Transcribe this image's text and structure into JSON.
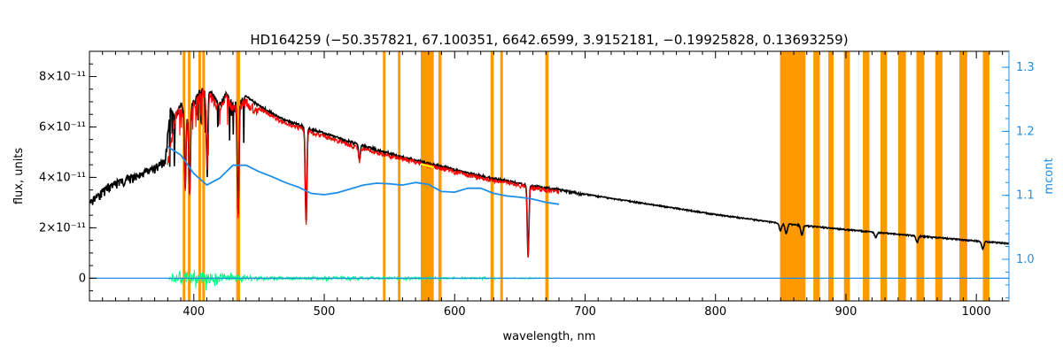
{
  "chart_data": {
    "type": "line",
    "title": "HD164259   (−50.357821, 67.100351, 6642.6599, 3.9152181, −0.19925828, 0.13693259)",
    "xlabel": "wavelength, nm",
    "ylabel": "flux, units",
    "y2label": "mcont",
    "xlim": [
      320,
      1025
    ],
    "ylim": [
      -9e-12,
      9e-11
    ],
    "y2lim": [
      0.935,
      1.325
    ],
    "grid": false,
    "x_ticks": [
      {
        "value": 400,
        "label": "400"
      },
      {
        "value": 500,
        "label": "500"
      },
      {
        "value": 600,
        "label": "600"
      },
      {
        "value": 700,
        "label": "700"
      },
      {
        "value": 800,
        "label": "800"
      },
      {
        "value": 900,
        "label": "900"
      },
      {
        "value": 1000,
        "label": "1000"
      }
    ],
    "y_ticks": [
      {
        "value": 0,
        "label": "0"
      },
      {
        "value": 2e-11,
        "label": "2×10⁻¹¹"
      },
      {
        "value": 4e-11,
        "label": "4×10⁻¹¹"
      },
      {
        "value": 6e-11,
        "label": "6×10⁻¹¹"
      },
      {
        "value": 8e-11,
        "label": "8×10⁻¹¹"
      }
    ],
    "y2_ticks": [
      {
        "value": 1.0,
        "label": "1.0"
      },
      {
        "value": 1.1,
        "label": "1.1"
      },
      {
        "value": 1.2,
        "label": "1.2"
      },
      {
        "value": 1.3,
        "label": "1.3"
      }
    ],
    "colors": {
      "observed": "#000000",
      "model": "#ff0000",
      "mask": "#ff9900",
      "continuum": "#1e8ee8",
      "residual": "#00ff7f",
      "highlight": "#ffff00"
    },
    "mask_regions": [
      [
        391.5,
        393.5
      ],
      [
        395.5,
        397.5
      ],
      [
        403.5,
        405.5
      ],
      [
        406.5,
        408.5
      ],
      [
        432.5,
        435.5
      ],
      [
        545.0,
        547.0
      ],
      [
        556.5,
        558.5
      ],
      [
        574.0,
        584.0
      ],
      [
        587.5,
        590.0
      ],
      [
        627.5,
        630.0
      ],
      [
        635.0,
        637.0
      ],
      [
        669.5,
        672.0
      ],
      [
        849.5,
        869.0
      ],
      [
        875.0,
        880.0
      ],
      [
        886.5,
        890.5
      ],
      [
        898.5,
        903.0
      ],
      [
        913.0,
        918.0
      ],
      [
        926.5,
        931.5
      ],
      [
        940.0,
        946.0
      ],
      [
        954.0,
        960.0
      ],
      [
        968.5,
        974.0
      ],
      [
        987.0,
        993.0
      ],
      [
        1005.0,
        1010.0
      ]
    ],
    "series": [
      {
        "role": "observed",
        "x": [
          320,
          330,
          340,
          350,
          360,
          370,
          378,
          382,
          386,
          390,
          395,
          400,
          405,
          410,
          415,
          420,
          425,
          430,
          440,
          450,
          460,
          470,
          480,
          490,
          500,
          520,
          540,
          560,
          580,
          600,
          620,
          640,
          660,
          680,
          700,
          750,
          800,
          850,
          900,
          950,
          1000,
          1025
        ],
        "y": [
          3.1e-11,
          3.6e-11,
          3.9e-11,
          4.1e-11,
          4.3e-11,
          4.5e-11,
          4.8e-11,
          6.8e-11,
          6.5e-11,
          7e-11,
          6.7e-11,
          7.1e-11,
          7.5e-11,
          7.7e-11,
          7.3e-11,
          7e-11,
          7.4e-11,
          7e-11,
          7.25e-11,
          6.9e-11,
          6.6e-11,
          6.3e-11,
          6.15e-11,
          5.95e-11,
          5.8e-11,
          5.45e-11,
          5.15e-11,
          4.85e-11,
          4.6e-11,
          4.35e-11,
          4.1e-11,
          3.9e-11,
          3.7e-11,
          3.55e-11,
          3.35e-11,
          2.95e-11,
          2.55e-11,
          2.2e-11,
          1.95e-11,
          1.72e-11,
          1.5e-11,
          1.4e-11
        ]
      },
      {
        "role": "model",
        "x": [
          380,
          386,
          390,
          395,
          400,
          405,
          410,
          415,
          420,
          425,
          430,
          440,
          450,
          460,
          470,
          480,
          490,
          500,
          520,
          540,
          560,
          580,
          600,
          620,
          640,
          660,
          680
        ],
        "y": [
          4.7e-11,
          6.6e-11,
          6.9e-11,
          6.6e-11,
          7e-11,
          7.4e-11,
          7.6e-11,
          7.2e-11,
          6.9e-11,
          7.3e-11,
          6.9e-11,
          7.15e-11,
          6.8e-11,
          6.5e-11,
          6.2e-11,
          6.05e-11,
          5.85e-11,
          5.7e-11,
          5.35e-11,
          5.05e-11,
          4.8e-11,
          4.55e-11,
          4.3e-11,
          4.05e-11,
          3.85e-11,
          3.65e-11,
          3.5e-11
        ]
      },
      {
        "role": "continuum",
        "x": [
          380,
          390,
          400,
          410,
          420,
          430,
          440,
          450,
          460,
          470,
          480,
          490,
          500,
          510,
          520,
          530,
          540,
          550,
          560,
          570,
          580,
          590,
          600,
          610,
          620,
          630,
          640,
          650,
          660,
          670,
          680
        ],
        "y": [
          1.176,
          1.163,
          1.134,
          1.116,
          1.127,
          1.147,
          1.147,
          1.137,
          1.129,
          1.12,
          1.113,
          1.103,
          1.101,
          1.104,
          1.11,
          1.116,
          1.119,
          1.118,
          1.116,
          1.12,
          1.117,
          1.106,
          1.105,
          1.111,
          1.111,
          1.103,
          1.099,
          1.097,
          1.094,
          1.089,
          1.086
        ]
      },
      {
        "role": "residual",
        "x": [
          380,
          390,
          400,
          410,
          420,
          430,
          440,
          460,
          480,
          500,
          520,
          540,
          560,
          580,
          600,
          620,
          640,
          660,
          680
        ],
        "y": [
          0,
          3e-12,
          2e-12,
          2.5e-12,
          1e-12,
          1.5e-12,
          8e-13,
          6e-13,
          5e-13,
          7e-13,
          6e-13,
          4e-13,
          5e-13,
          3e-13,
          3e-13,
          3e-13,
          2e-13,
          2e-13,
          0
        ]
      }
    ],
    "absorption_lines": [
      {
        "x": 393.4,
        "depth": 3e-11
      },
      {
        "x": 396.8,
        "depth": 3.4e-11
      },
      {
        "x": 410.2,
        "depth": 3e-11
      },
      {
        "x": 434.0,
        "depth": 4.6e-11
      },
      {
        "x": 486.1,
        "depth": 3.8e-11
      },
      {
        "x": 527.0,
        "depth": 6e-12
      },
      {
        "x": 656.3,
        "depth": 2.8e-11
      },
      {
        "x": 849.8,
        "depth": 3e-12
      },
      {
        "x": 854.2,
        "depth": 4e-12
      },
      {
        "x": 866.2,
        "depth": 4e-12
      },
      {
        "x": 922.9,
        "depth": 2e-12
      },
      {
        "x": 954.6,
        "depth": 2.5e-12
      },
      {
        "x": 1004.9,
        "depth": 3e-12
      }
    ]
  }
}
